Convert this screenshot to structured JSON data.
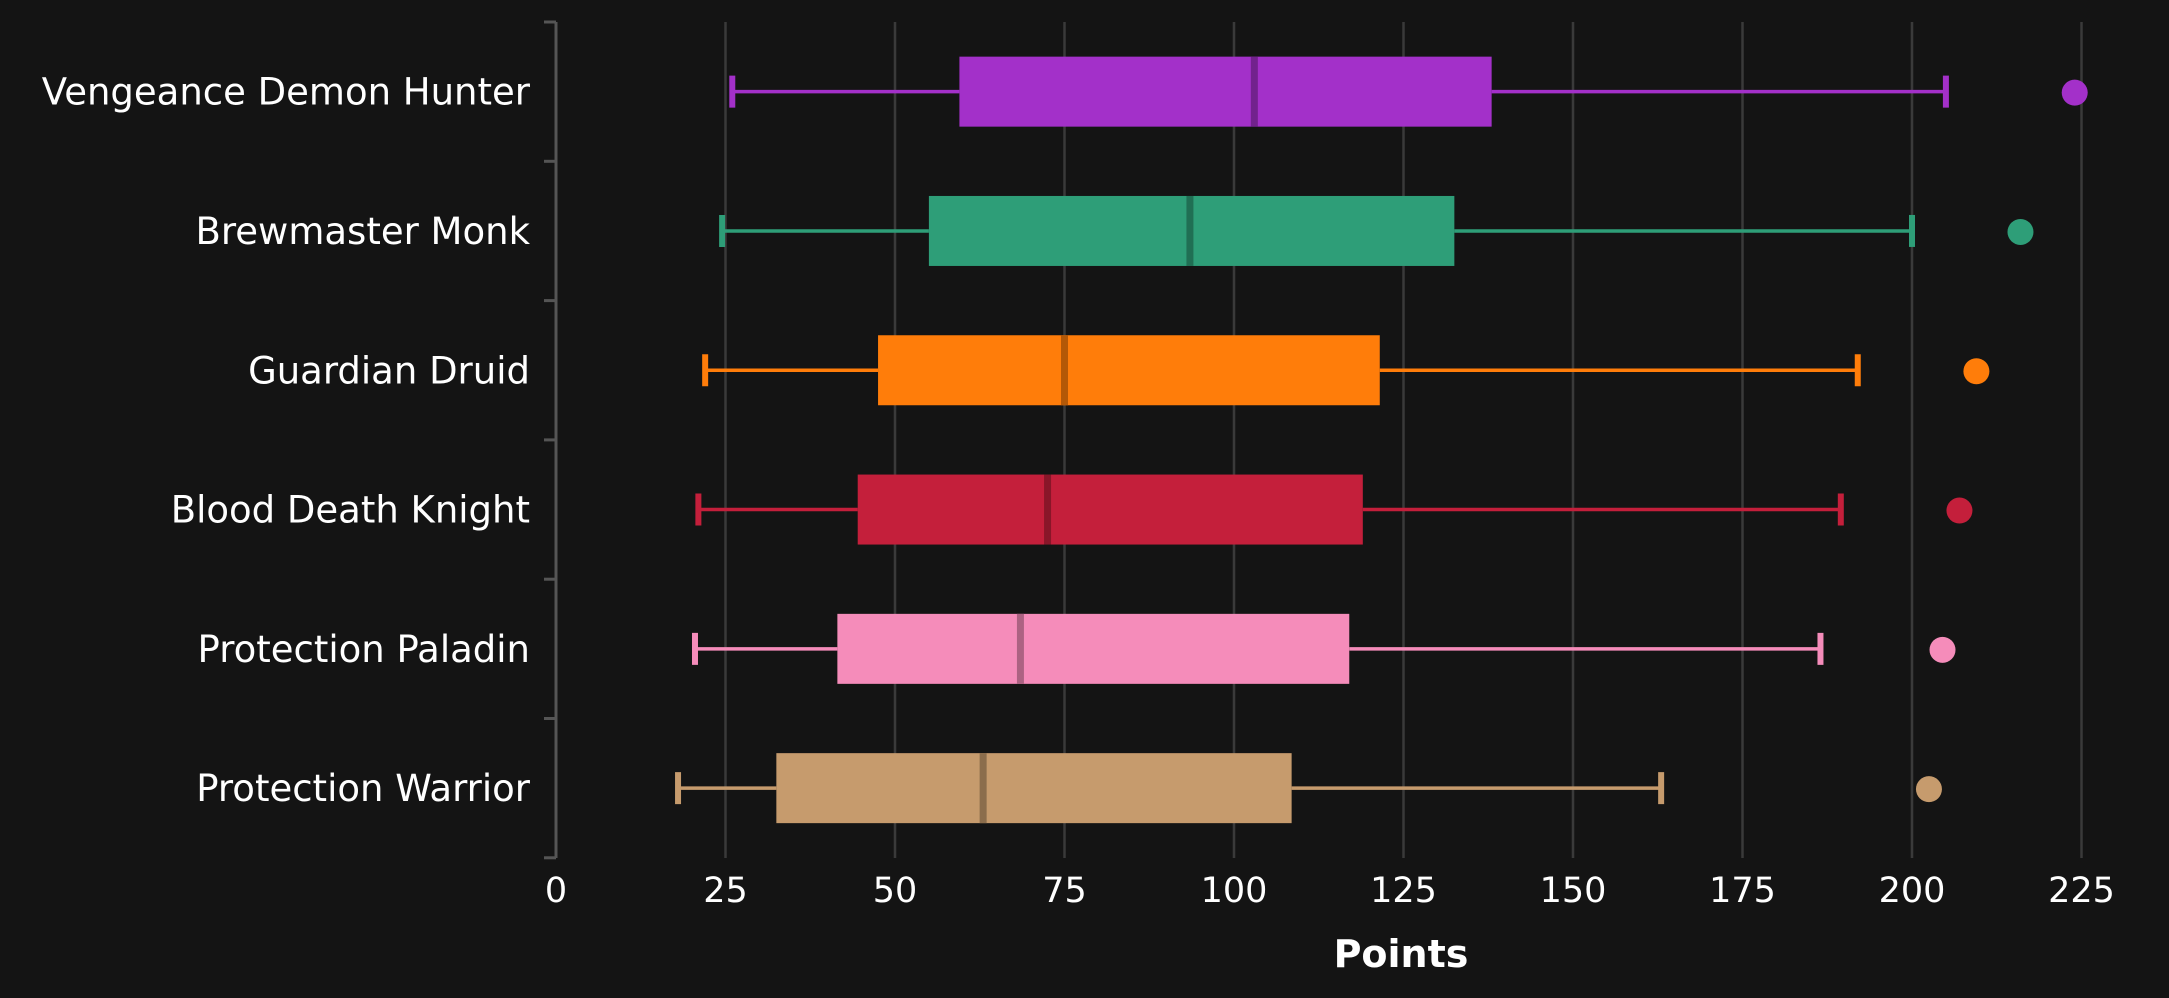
{
  "chart_data": {
    "type": "boxplot",
    "orientation": "horizontal",
    "xlabel": "Points",
    "xlim": [
      0,
      225
    ],
    "xticks": [
      0,
      25,
      50,
      75,
      100,
      125,
      150,
      175,
      200,
      225
    ],
    "grid": true,
    "legend": "none",
    "series": [
      {
        "name": "Vengeance Demon Hunter",
        "color": "#A330C9",
        "min": 26,
        "q1": 59.5,
        "median": 103,
        "q3": 138,
        "max": 205,
        "outlier": 224
      },
      {
        "name": "Brewmaster Monk",
        "color": "#2E9E78",
        "min": 24.5,
        "q1": 55,
        "median": 93.5,
        "q3": 132.5,
        "max": 200,
        "outlier": 216
      },
      {
        "name": "Guardian Druid",
        "color": "#FF7D0A",
        "min": 22,
        "q1": 47.5,
        "median": 75,
        "q3": 121.5,
        "max": 192,
        "outlier": 209.5
      },
      {
        "name": "Blood Death Knight",
        "color": "#C41F3B",
        "min": 21,
        "q1": 44.5,
        "median": 72.5,
        "q3": 119,
        "max": 189.5,
        "outlier": 207
      },
      {
        "name": "Protection Paladin",
        "color": "#F58CBA",
        "min": 20.5,
        "q1": 41.5,
        "median": 68.5,
        "q3": 117,
        "max": 186.5,
        "outlier": 204.5
      },
      {
        "name": "Protection Warrior",
        "color": "#C69B6D",
        "min": 18,
        "q1": 32.5,
        "median": 63,
        "q3": 108.5,
        "max": 163,
        "outlier": 202.5
      }
    ]
  }
}
